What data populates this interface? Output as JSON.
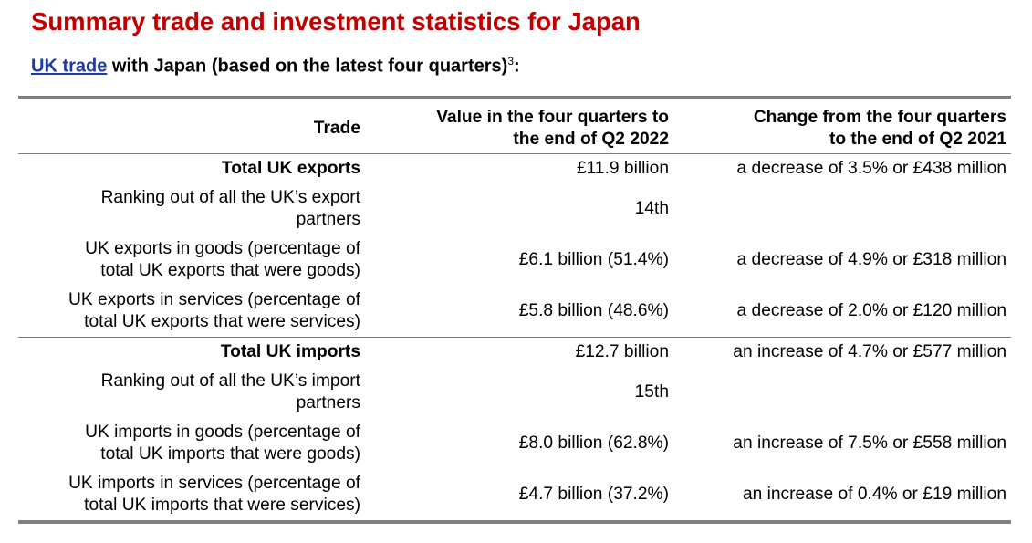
{
  "title": "Summary trade and investment statistics for Japan",
  "subtitle": {
    "link_text": "UK trade",
    "rest_text": " with Japan (based on the latest four quarters)",
    "footnote": "3",
    "trailing": ":"
  },
  "table": {
    "headers": {
      "col1": "Trade",
      "col2": "Value in the four quarters to the end of Q2 2022",
      "col3": "Change from the four quarters to the end of Q2 2021"
    },
    "rows": [
      {
        "label": "Total UK exports",
        "value": "£11.9 billion",
        "change": "a decrease of 3.5% or £438 million"
      },
      {
        "label": "Ranking out of all the UK’s export partners",
        "value": "14th",
        "change": ""
      },
      {
        "label": "UK exports in goods (percentage of total UK exports that were goods)",
        "value": "£6.1 billion (51.4%)",
        "change": "a decrease of 4.9% or £318 million"
      },
      {
        "label": "UK exports in services (percentage of total UK exports that were services)",
        "value": "£5.8 billion (48.6%)",
        "change": "a decrease of 2.0% or £120 million"
      },
      {
        "label": "Total UK imports",
        "value": "£12.7 billion",
        "change": "an increase of 4.7% or £577 million"
      },
      {
        "label": "Ranking out of all the UK’s import partners",
        "value": "15th",
        "change": ""
      },
      {
        "label": "UK imports in goods (percentage of total UK imports that were goods)",
        "value": "£8.0 billion (62.8%)",
        "change": "an increase of 7.5% or £558 million"
      },
      {
        "label": "UK imports in services (percentage of total UK imports that were services)",
        "value": "£4.7 billion (37.2%)",
        "change": "an increase of 0.4% or £19 million"
      }
    ]
  }
}
